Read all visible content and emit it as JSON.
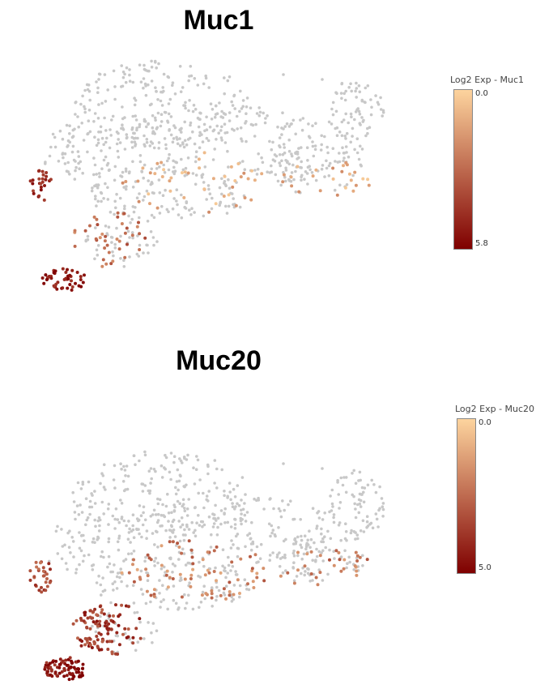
{
  "chart_data": [
    {
      "type": "scatter",
      "title": "Muc1",
      "legend": {
        "title": "Log2 Exp - Muc1",
        "min_label": "0.0",
        "max_label": "5.8",
        "min": 0.0,
        "max": 5.8,
        "color_low": "#fdd49e",
        "color_high": "#7f0000",
        "position": "right"
      },
      "background_color": "#c8c8c8",
      "grid": false,
      "axes_visible": false,
      "seed": 11,
      "n_background": 820,
      "expressed_clusters": [
        {
          "region": "lower-left tip",
          "level": 5.2,
          "count": 45
        },
        {
          "region": "left edge",
          "level": 4.8,
          "count": 25
        },
        {
          "region": "lower stem",
          "level": 2.8,
          "count": 40
        },
        {
          "region": "center",
          "level": 1.2,
          "count": 45
        },
        {
          "region": "right arm",
          "level": 1.0,
          "count": 25
        }
      ]
    },
    {
      "type": "scatter",
      "title": "Muc20",
      "legend": {
        "title": "Log2 Exp - Muc20",
        "min_label": "0.0",
        "max_label": "5.0",
        "min": 0.0,
        "max": 5.0,
        "color_low": "#fdd49e",
        "color_high": "#7f0000",
        "position": "right"
      },
      "background_color": "#c8c8c8",
      "grid": false,
      "axes_visible": false,
      "seed": 23,
      "n_background": 760,
      "expressed_clusters": [
        {
          "region": "lower-left tip",
          "level": 4.6,
          "count": 80
        },
        {
          "region": "lower stem",
          "level": 3.6,
          "count": 110
        },
        {
          "region": "left edge",
          "level": 3.2,
          "count": 30
        },
        {
          "region": "center",
          "level": 2.0,
          "count": 80
        },
        {
          "region": "right arm",
          "level": 2.2,
          "count": 30
        }
      ]
    }
  ]
}
